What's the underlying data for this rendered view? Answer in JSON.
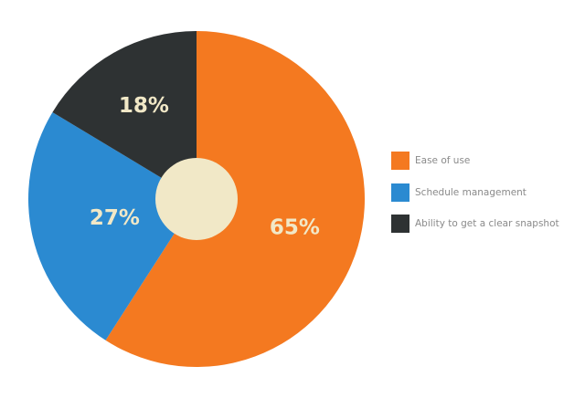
{
  "chart_data": {
    "type": "pie",
    "title": "",
    "slices": [
      {
        "label": "Ease of use",
        "value": 65,
        "display": "65%",
        "color": "#f47920"
      },
      {
        "label": "Schedule management",
        "value": 27,
        "display": "27%",
        "color": "#2b8ad1"
      },
      {
        "label": "Ability to get a clear snapshot",
        "value": 18,
        "display": "18%",
        "color": "#2e3233"
      }
    ],
    "center_color": "#f1e8c7",
    "legend_position": "right"
  }
}
